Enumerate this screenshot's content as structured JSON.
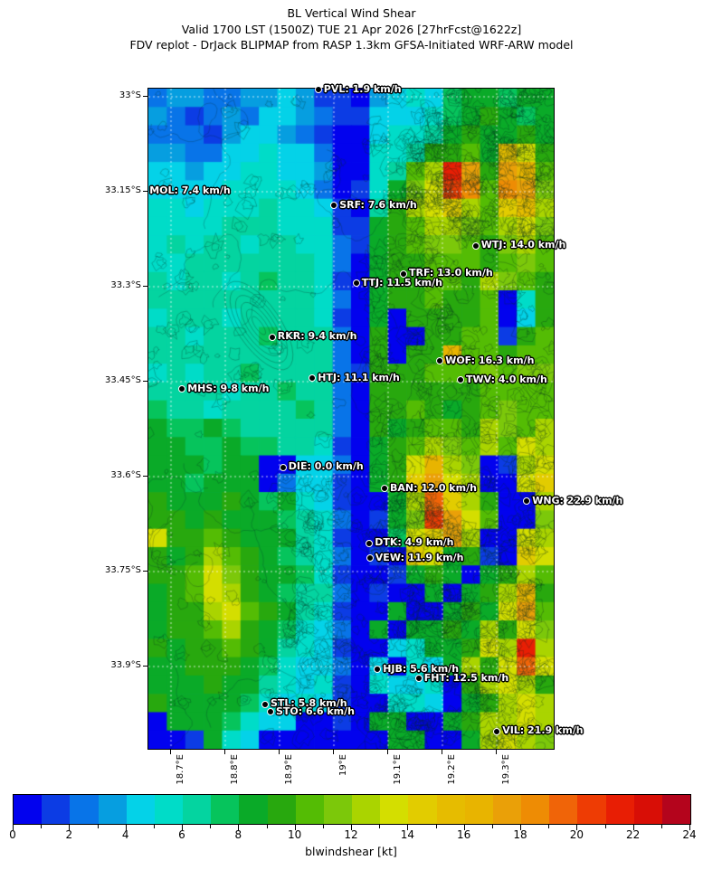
{
  "title": {
    "line1": "BL Vertical Wind Shear",
    "line2": "Valid 1700 LST (1500Z) TUE 21 Apr 2026 [27hrFcst@1622z]",
    "line3": "FDV replot - DrJack BLIPMAP from RASP 1.3km GFSA-Initiated WRF-ARW model"
  },
  "chart_data": {
    "type": "heatmap",
    "variable": "blwindshear",
    "map_label_units": "km/h",
    "x_axis": {
      "range": [
        18.658,
        19.405
      ],
      "ticks": [
        {
          "value": 18.7,
          "label": "18.7°E"
        },
        {
          "value": 18.8,
          "label": "18.8°E"
        },
        {
          "value": 18.9,
          "label": "18.9°E"
        },
        {
          "value": 19.0,
          "label": "19°E"
        },
        {
          "value": 19.1,
          "label": "19.1°E"
        },
        {
          "value": 19.2,
          "label": "19.2°E"
        },
        {
          "value": 19.3,
          "label": "19.3°E"
        }
      ]
    },
    "y_axis": {
      "range": [
        32.987,
        34.03
      ],
      "ticks": [
        {
          "value": 33.0,
          "label": "33°S"
        },
        {
          "value": 33.15,
          "label": "33.15°S"
        },
        {
          "value": 33.3,
          "label": "33.3°S"
        },
        {
          "value": 33.45,
          "label": "33.45°S"
        },
        {
          "value": 33.6,
          "label": "33.6°S"
        },
        {
          "value": 33.75,
          "label": "33.75°S"
        },
        {
          "value": 33.9,
          "label": "33.9°S"
        }
      ]
    },
    "colorbar": {
      "label": "blwindshear [kt]",
      "min": 0,
      "max": 24,
      "major_tick_step": 2,
      "tick_labels": [
        "0",
        "2",
        "4",
        "6",
        "8",
        "10",
        "12",
        "14",
        "16",
        "18",
        "20",
        "22",
        "24"
      ],
      "palette": [
        "#0202ee",
        "#0c3ce4",
        "#0874e8",
        "#069ee0",
        "#04d2e8",
        "#00dcc8",
        "#04d4a0",
        "#06c45c",
        "#0aaa28",
        "#28a80e",
        "#54bc04",
        "#7cc80a",
        "#aad400",
        "#d4de00",
        "#e2cc00",
        "#e6bc00",
        "#e8b400",
        "#eaa008",
        "#ee8c04",
        "#f06408",
        "#ee3c04",
        "#e81e04",
        "#d80e06",
        "#b4041c"
      ]
    },
    "grid": {
      "cols": 22,
      "rows": 36,
      "encoding": "each char = cell value in kt: 0-9 then a=10 ... n=23",
      "cells": [
        "2332233431103454788788",
        "3212324432114445789878",
        "2221344321004556898898",
        "33224454420055699a8fd9",
        "44344554430056aclh9hga",
        "44445555420158bdkiaihb",
        "55455565541069cdecaefc",
        "55556665551189accbacdb",
        "56566566552189abba9bca",
        "556666666520899aaa9aba",
        "656656766510899aa9cba9",
        "666666666520899a99a059",
        "566656666510809999a049",
        "66566676662090099aa19a",
        "6666666666209099gaa9aa",
        "565667666621999aaababb",
        "666656676620999999aaaa",
        "76656666762099a989abaa",
        "877876666620989aa9cbac",
        "88778776651089acbacadc",
        "88878800442089dgcb01cd",
        "88788802441089ehdc00de",
        "98889878541008cjec900c",
        "99898887652018bkhda00b",
        "d99a9888651007dehc00dc",
        "989ca987652010ed8910ed",
        "99adb988751001898089ca",
        "89adc98766201008089cg9",
        "899cda9865100800898dha",
        "899ac9875420808898c9db",
        "9899a9865410045889dclc",
        "88999875442040548c9djd",
        "888988654510544509cdc9",
        "9888875454100554089cdc",
        "088875440010880089ccdc",
        "001854000000088008cdcb"
      ]
    },
    "stations": [
      {
        "id": "PVL",
        "value": "1.9",
        "label": "PVL: 1.9 km/h",
        "lon": 18.973,
        "lat": 32.99,
        "dot": true
      },
      {
        "id": "MOL",
        "value": "7.4",
        "label": "MOL: 7.4 km/h",
        "lon": 18.662,
        "lat": 33.15,
        "dot": false
      },
      {
        "id": "SRF",
        "value": "7.6",
        "label": "SRF: 7.6 km/h",
        "lon": 19.002,
        "lat": 33.173,
        "dot": true
      },
      {
        "id": "WTJ",
        "value": "14.0",
        "label": "WTJ: 14.0 km/h",
        "lon": 19.263,
        "lat": 33.237,
        "dot": true
      },
      {
        "id": "TRF",
        "value": "13.0",
        "label": "TRF: 13.0 km/h",
        "lon": 19.13,
        "lat": 33.281,
        "dot": true
      },
      {
        "id": "TTJ",
        "value": "11.5",
        "label": "TTJ: 11.5 km/h",
        "lon": 19.043,
        "lat": 33.296,
        "dot": true
      },
      {
        "id": "RKR",
        "value": "9.4",
        "label": "RKR: 9.4 km/h",
        "lon": 18.888,
        "lat": 33.381,
        "dot": true
      },
      {
        "id": "WOF",
        "value": "16.3",
        "label": "WOF: 16.3 km/h",
        "lon": 19.197,
        "lat": 33.419,
        "dot": true
      },
      {
        "id": "TWV",
        "value": "4.0",
        "label": "TWV: 4.0 km/h",
        "lon": 19.235,
        "lat": 33.449,
        "dot": true
      },
      {
        "id": "HTJ",
        "value": "11.1",
        "label": "HTJ: 11.1 km/h",
        "lon": 18.962,
        "lat": 33.446,
        "dot": true
      },
      {
        "id": "MHS",
        "value": "9.8",
        "label": "MHS: 9.8 km/h",
        "lon": 18.722,
        "lat": 33.463,
        "dot": true
      },
      {
        "id": "DIE",
        "value": "0.0",
        "label": "DIE: 0.0 km/h",
        "lon": 18.908,
        "lat": 33.587,
        "dot": true
      },
      {
        "id": "BAN",
        "value": "12.0",
        "label": "BAN: 12.0 km/h",
        "lon": 19.095,
        "lat": 33.62,
        "dot": true
      },
      {
        "id": "WNG",
        "value": "22.9",
        "label": "WNG: 22.9 km/h",
        "lon": 19.357,
        "lat": 33.64,
        "dot": true
      },
      {
        "id": "DTK",
        "value": "4.9",
        "label": "DTK: 4.9 km/h",
        "lon": 19.067,
        "lat": 33.707,
        "dot": true
      },
      {
        "id": "VEW",
        "value": "11.9",
        "label": "VEW: 11.9 km/h",
        "lon": 19.068,
        "lat": 33.73,
        "dot": true
      },
      {
        "id": "HJB",
        "value": "5.6",
        "label": "HJB: 5.6 km/h",
        "lon": 19.082,
        "lat": 33.906,
        "dot": true
      },
      {
        "id": "FHT",
        "value": "12.5",
        "label": "FHT: 12.5 km/h",
        "lon": 19.158,
        "lat": 33.92,
        "dot": true
      },
      {
        "id": "STL",
        "value": "5.8",
        "label": "STL: 5.8 km/h",
        "lon": 18.875,
        "lat": 33.961,
        "dot": true
      },
      {
        "id": "STO",
        "value": "6.6",
        "label": "STO: 6.6 km/h",
        "lon": 18.885,
        "lat": 33.973,
        "dot": true
      },
      {
        "id": "VIL",
        "value": "21.9",
        "label": "VIL: 21.9 km/h",
        "lon": 19.302,
        "lat": 34.004,
        "dot": true
      }
    ]
  }
}
